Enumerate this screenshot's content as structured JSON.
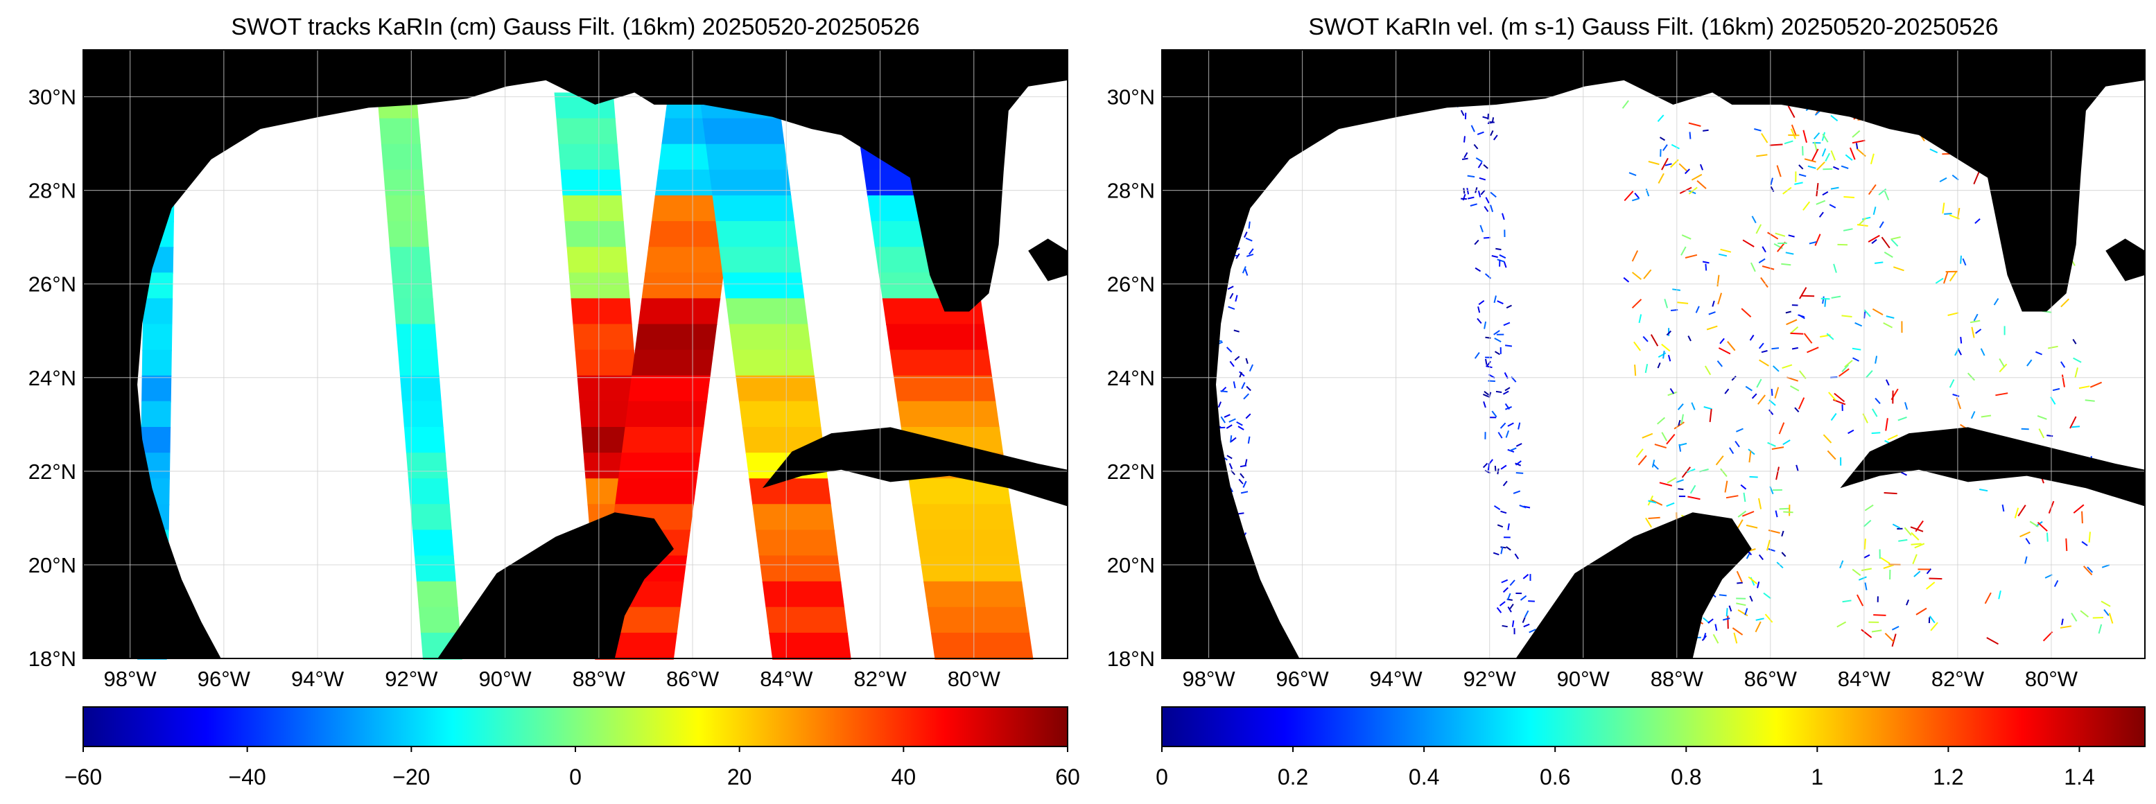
{
  "colors": {
    "land": "#000000",
    "ocean": "#ffffff",
    "grid": "#d0d0d0",
    "jet": [
      "#00008f",
      "#0000ff",
      "#0080ff",
      "#00ffff",
      "#80ff80",
      "#ffff00",
      "#ff8000",
      "#ff0000",
      "#800000"
    ]
  },
  "panels": [
    {
      "title": "SWOT tracks KaRIn (cm) Gauss Filt. (16km) 20250520-20250526",
      "kind": "ssh",
      "lat_labels": [
        "30°N",
        "28°N",
        "26°N",
        "24°N",
        "22°N",
        "20°N",
        "18°N"
      ],
      "lon_labels": [
        "98°W",
        "96°W",
        "94°W",
        "92°W",
        "90°W",
        "88°W",
        "86°W",
        "84°W",
        "82°W",
        "80°W"
      ],
      "colorbar": {
        "min": -60,
        "max": 60,
        "ticks": [
          "−60",
          "−40",
          "−20",
          "0",
          "20",
          "40",
          "60"
        ]
      }
    },
    {
      "title": "SWOT KaRIn vel. (m s-1) Gauss Filt. (16km) 20250520-20250526",
      "kind": "vel",
      "lat_labels": [
        "30°N",
        "28°N",
        "26°N",
        "24°N",
        "22°N",
        "20°N",
        "18°N"
      ],
      "lon_labels": [
        "98°W",
        "96°W",
        "94°W",
        "92°W",
        "90°W",
        "88°W",
        "86°W",
        "84°W",
        "82°W",
        "80°W"
      ],
      "colorbar": {
        "min": 0,
        "max": 1.5,
        "ticks": [
          "0",
          "0.2",
          "0.4",
          "0.6",
          "0.8",
          "1",
          "1.2",
          "1.4"
        ]
      }
    }
  ],
  "map_extent": {
    "lon_min": -99,
    "lon_max": -78,
    "lat_min": 18,
    "lat_max": 31
  },
  "lat_values": [
    30,
    28,
    26,
    24,
    22,
    20,
    18
  ],
  "lon_values": [
    -98,
    -96,
    -94,
    -92,
    -90,
    -88,
    -86,
    -84,
    -82,
    -80
  ],
  "ssh_tracks": [
    {
      "name": "track-1",
      "values": [
        -20,
        -18,
        -22,
        -25,
        -20,
        -22
      ]
    },
    {
      "name": "track-2",
      "values": [
        0,
        -5,
        -10,
        -15,
        -12,
        -5
      ]
    },
    {
      "name": "track-3",
      "values": [
        -10,
        5,
        40,
        50,
        35,
        25
      ]
    },
    {
      "name": "track-4",
      "values": [
        -20,
        30,
        55,
        45,
        40,
        42
      ]
    },
    {
      "name": "track-5",
      "values": [
        -25,
        -15,
        5,
        20,
        35,
        40
      ]
    },
    {
      "name": "track-6",
      "values": [
        -40,
        -10,
        40,
        30,
        20,
        30
      ]
    }
  ]
}
